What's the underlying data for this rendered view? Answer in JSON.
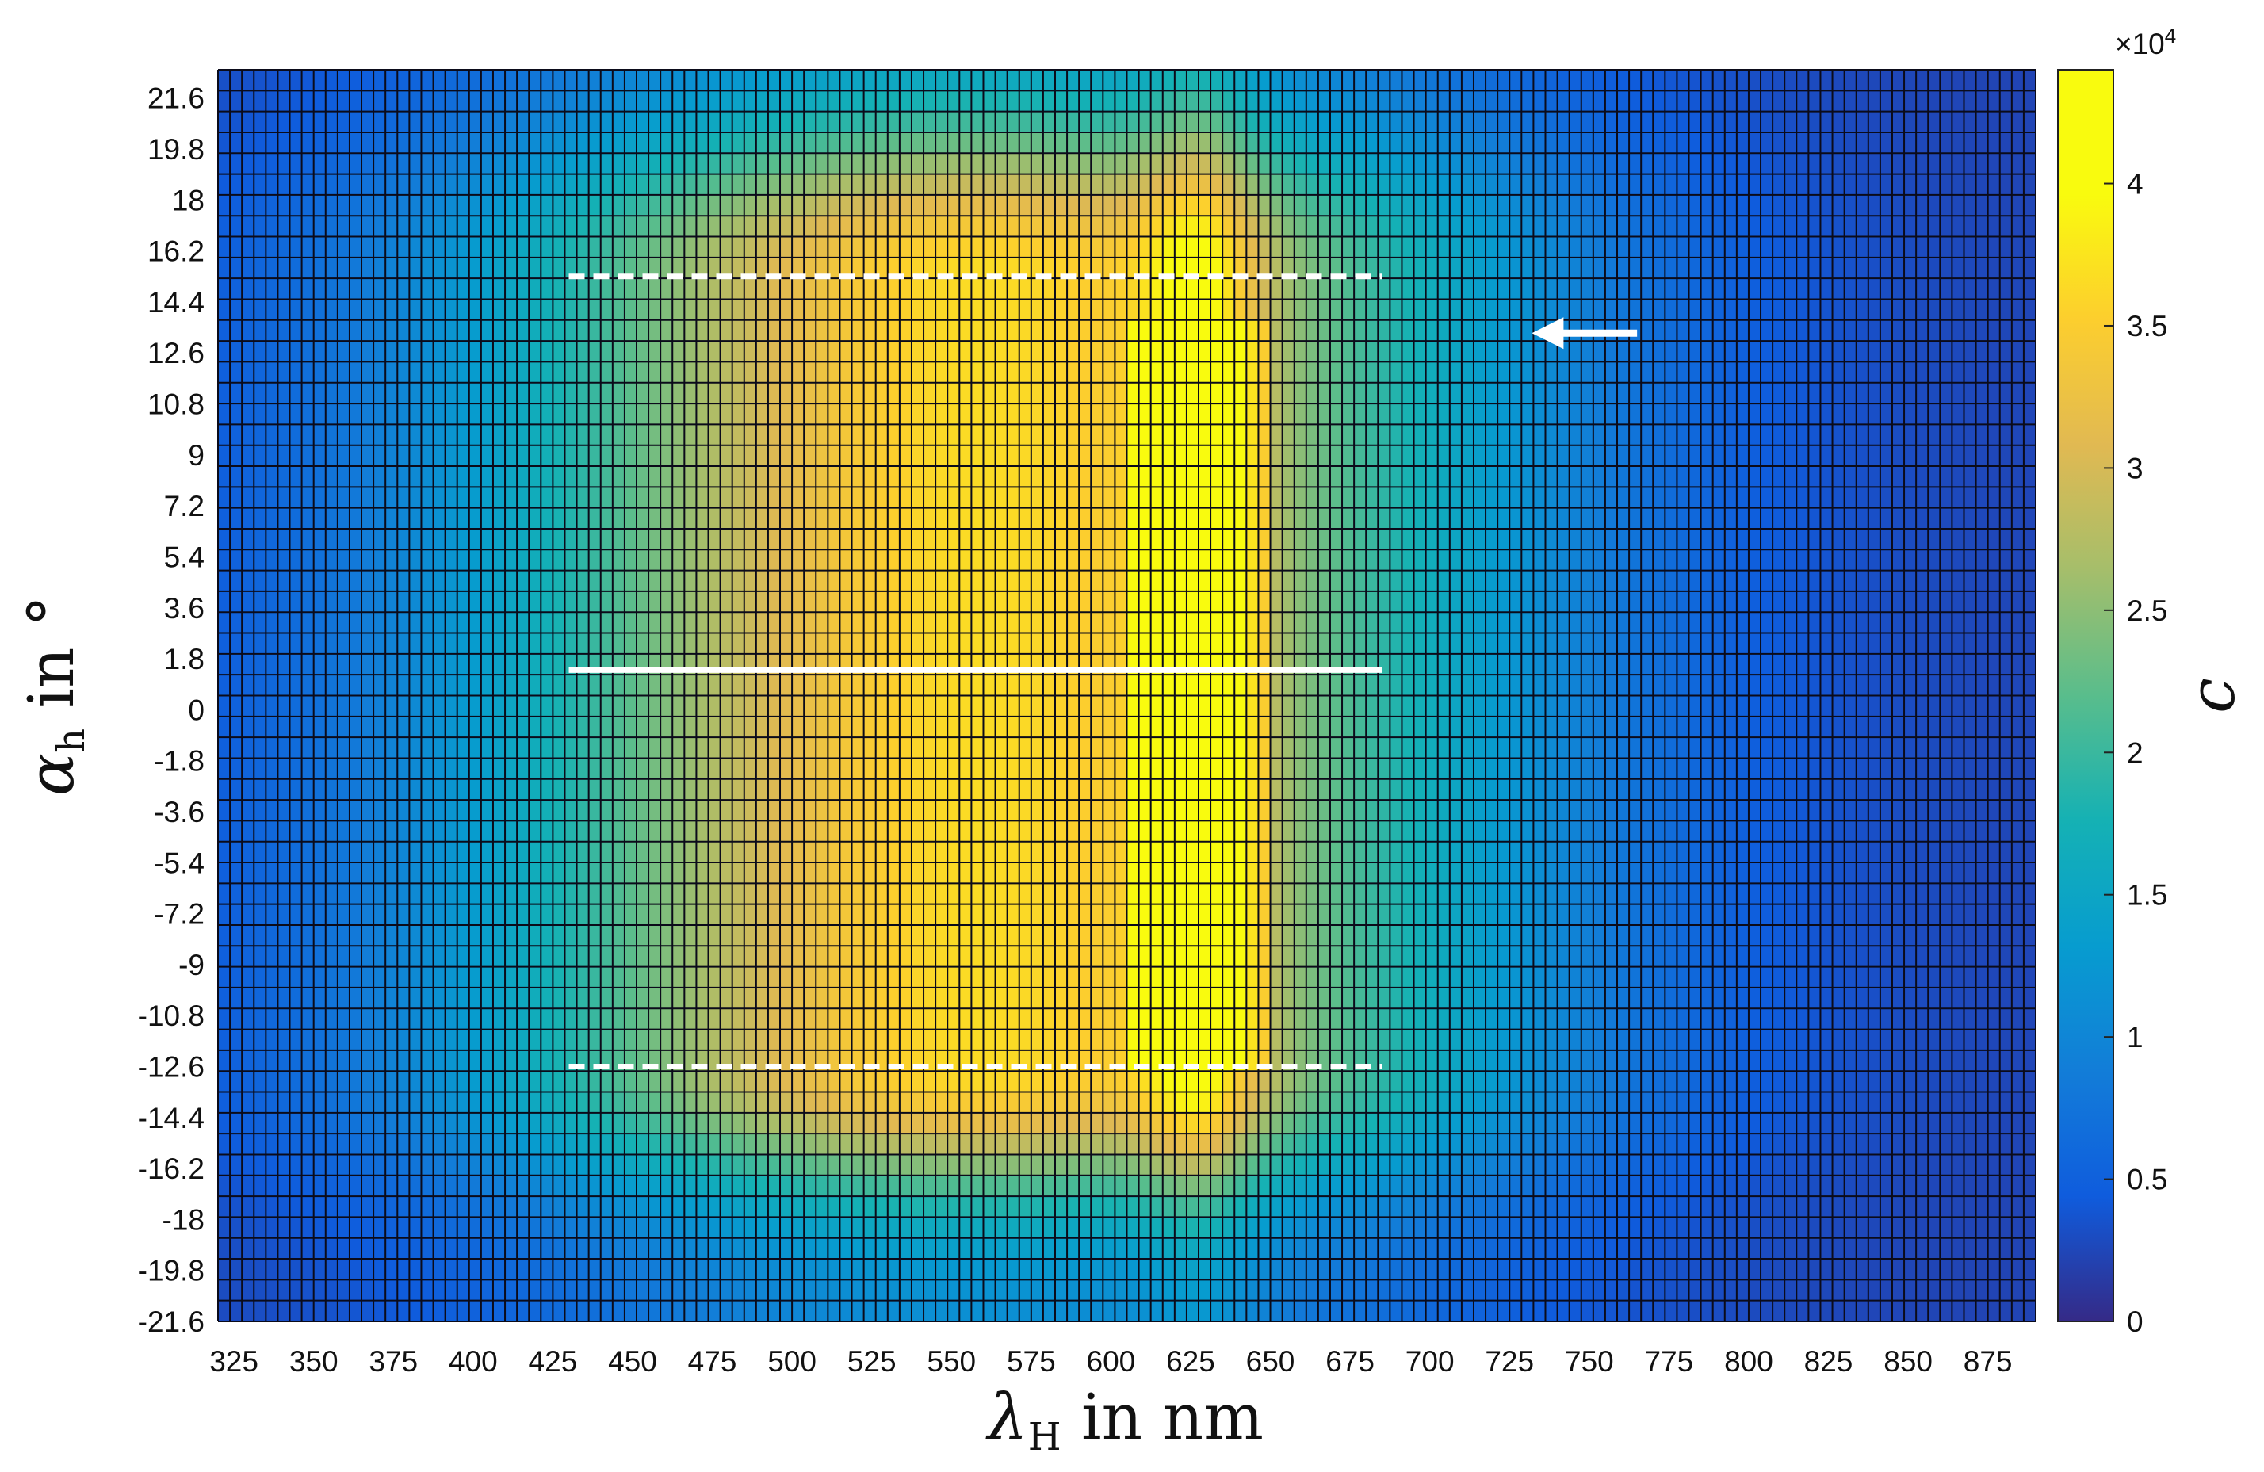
{
  "chart_data": {
    "type": "heatmap",
    "xlabel": "λ_H in nm",
    "ylabel": "α_h in °",
    "colorbar_label": "c",
    "colorbar_exponent": "×10^4",
    "x_ticks": [
      "325",
      "350",
      "375",
      "400",
      "425",
      "450",
      "475",
      "500",
      "525",
      "550",
      "575",
      "600",
      "625",
      "650",
      "675",
      "700",
      "725",
      "750",
      "775",
      "800",
      "825",
      "850",
      "875"
    ],
    "y_ticks": [
      "21.6",
      "19.8",
      "18",
      "16.2",
      "14.4",
      "12.6",
      "10.8",
      "9",
      "7.2",
      "5.4",
      "3.6",
      "1.8",
      "0",
      "-1.8",
      "-3.6",
      "-5.4",
      "-7.2",
      "-9",
      "-10.8",
      "-12.6",
      "-14.4",
      "-16.2",
      "-18",
      "-19.8",
      "-21.6"
    ],
    "colorbar_ticks": [
      "0",
      "0.5",
      "1",
      "1.5",
      "2",
      "2.5",
      "3",
      "3.5",
      "4"
    ],
    "xlim": [
      320,
      890
    ],
    "ylim": [
      -21.6,
      22.6
    ],
    "clim": [
      0,
      44000
    ],
    "colormap": "parula",
    "grid": true,
    "surface_model": {
      "description_values_c": "c peaks near 45000 at about 620-640 nm, 430-600 nm band around 30000-38000; falls to ~2000 at edges",
      "peak_value": 44000,
      "wavelength_peaks_nm": [
        470,
        530,
        575,
        630
      ],
      "angle_limits_deg": [
        -12.6,
        15.3
      ]
    },
    "annotations": {
      "solid_line": {
        "x": [
          430,
          685
        ],
        "y": 1.4,
        "color": "#ffffff"
      },
      "dashed_line_top": {
        "x": [
          430,
          685
        ],
        "y": 15.3,
        "color": "#ffffff"
      },
      "dashed_line_bottom": {
        "x": [
          430,
          685
        ],
        "y": -12.6,
        "color": "#ffffff"
      },
      "arrow": {
        "from_x": 765,
        "to_x": 732,
        "y": 13.3,
        "color": "#ffffff"
      }
    }
  }
}
